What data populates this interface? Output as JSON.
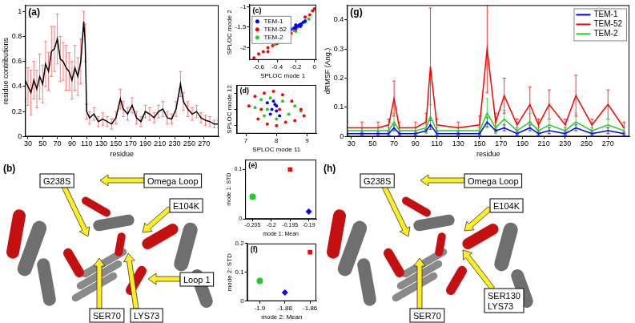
{
  "chart_data": [
    {
      "type": "line",
      "title": "(a)",
      "xlabel": "residue",
      "ylabel": "residue contributions",
      "xlim": [
        26,
        290
      ],
      "xticks": [
        30,
        50,
        70,
        90,
        110,
        130,
        150,
        170,
        190,
        210,
        230,
        250,
        270
      ],
      "ylim": [
        0,
        1.05
      ],
      "yticks": [
        0,
        0.2,
        0.4,
        0.6,
        0.8,
        1
      ],
      "grid": false,
      "x": [
        26,
        30,
        34,
        38,
        42,
        46,
        50,
        54,
        58,
        62,
        66,
        70,
        74,
        78,
        82,
        86,
        90,
        94,
        98,
        102,
        106,
        108,
        110,
        114,
        120,
        126,
        132,
        138,
        144,
        150,
        156,
        160,
        166,
        172,
        178,
        184,
        190,
        196,
        202,
        208,
        214,
        220,
        226,
        232,
        238,
        242,
        248,
        254,
        260,
        266,
        272,
        278,
        284,
        290
      ],
      "series": [
        {
          "color": "#000000",
          "values": [
            0.45,
            0.4,
            0.35,
            0.45,
            0.38,
            0.48,
            0.42,
            0.58,
            0.52,
            0.68,
            0.7,
            0.78,
            0.62,
            0.6,
            0.55,
            0.52,
            0.45,
            0.55,
            0.48,
            0.6,
            0.92,
            0.75,
            0.2,
            0.15,
            0.18,
            0.12,
            0.14,
            0.12,
            0.1,
            0.15,
            0.3,
            0.22,
            0.18,
            0.25,
            0.15,
            0.12,
            0.2,
            0.18,
            0.15,
            0.2,
            0.22,
            0.15,
            0.14,
            0.22,
            0.42,
            0.28,
            0.22,
            0.18,
            0.2,
            0.15,
            0.13,
            0.12,
            0.1,
            0.1
          ],
          "errors": [
            0.15,
            0.15,
            0.18,
            0.15,
            0.15,
            0.18,
            0.15,
            0.18,
            0.15,
            0.2,
            0.18,
            0.2,
            0.18,
            0.15,
            0.18,
            0.15,
            0.15,
            0.18,
            0.15,
            0.18,
            0.08,
            0.15,
            0.06,
            0.05,
            0.05,
            0.04,
            0.05,
            0.04,
            0.04,
            0.05,
            0.08,
            0.06,
            0.05,
            0.06,
            0.05,
            0.04,
            0.05,
            0.05,
            0.04,
            0.05,
            0.06,
            0.05,
            0.04,
            0.06,
            0.1,
            0.07,
            0.06,
            0.05,
            0.05,
            0.04,
            0.04,
            0.04,
            0.03,
            0.03
          ]
        }
      ]
    },
    {
      "type": "scatter",
      "title": "(c)",
      "xlabel": "SPLOC mode 1",
      "ylabel": "SPLOC mode 2",
      "xlim": [
        -0.7,
        0.02
      ],
      "xticks": [
        -0.6,
        -0.4,
        -0.2,
        0
      ],
      "ylim": [
        -2.3,
        -0.95
      ],
      "yticks": [
        -2,
        -1.5,
        -1
      ],
      "grid": false,
      "legend": "upper left",
      "series": [
        {
          "name": "TEM-1",
          "color": "#0000ff",
          "marker": "circle",
          "values": [
            [
              -0.3,
              -1.62
            ],
            [
              -0.27,
              -1.58
            ],
            [
              -0.25,
              -1.55
            ],
            [
              -0.22,
              -1.52
            ],
            [
              -0.2,
              -1.5
            ],
            [
              -0.18,
              -1.47
            ],
            [
              -0.16,
              -1.44
            ],
            [
              -0.14,
              -1.42
            ],
            [
              -0.12,
              -1.38
            ],
            [
              -0.1,
              -1.35
            ],
            [
              -0.2,
              -1.45
            ],
            [
              -0.15,
              -1.48
            ]
          ]
        },
        {
          "name": "TEM-52",
          "color": "#ff0000",
          "marker": "circle",
          "values": [
            [
              -0.65,
              -2.25
            ],
            [
              -0.6,
              -2.15
            ],
            [
              -0.55,
              -2.1
            ],
            [
              -0.5,
              -2.0
            ],
            [
              -0.45,
              -1.95
            ],
            [
              -0.4,
              -1.9
            ],
            [
              -0.35,
              -1.8
            ],
            [
              -0.3,
              -1.7
            ],
            [
              -0.25,
              -1.65
            ],
            [
              -0.2,
              -1.55
            ],
            [
              -0.15,
              -1.45
            ],
            [
              -0.1,
              -1.35
            ],
            [
              -0.05,
              -1.2
            ],
            [
              0,
              -1.05
            ],
            [
              -0.5,
              -2.1
            ],
            [
              -0.3,
              -1.8
            ],
            [
              -0.2,
              -1.45
            ],
            [
              -0.1,
              -1.25
            ],
            [
              -0.02,
              -1.1
            ]
          ]
        },
        {
          "name": "TEM-2",
          "color": "#22cc22",
          "marker": "circle",
          "values": [
            [
              -0.42,
              -1.92
            ],
            [
              -0.38,
              -1.85
            ],
            [
              -0.35,
              -1.78
            ],
            [
              -0.3,
              -1.72
            ],
            [
              -0.26,
              -1.65
            ],
            [
              -0.22,
              -1.58
            ],
            [
              -0.18,
              -1.5
            ],
            [
              -0.14,
              -1.45
            ],
            [
              -0.1,
              -1.38
            ],
            [
              -0.06,
              -1.3
            ],
            [
              -0.3,
              -1.65
            ],
            [
              -0.2,
              -1.6
            ]
          ]
        }
      ]
    },
    {
      "type": "scatter",
      "title": "(d)",
      "xlabel": "SPLOC mode 11",
      "ylabel": "SPLOC mode 12",
      "xlim": [
        6.7,
        9.3
      ],
      "xticks": [
        7,
        8,
        9
      ],
      "ylim": [
        -1.5,
        1.5
      ],
      "yticks": [
        -1,
        0,
        1
      ],
      "grid": false,
      "tick_labels": "x",
      "series": [
        {
          "name": "TEM-52",
          "color": "#ff0000",
          "marker": "circle",
          "values": [
            [
              7.1,
              0.2
            ],
            [
              7.3,
              0.8
            ],
            [
              7.4,
              -0.6
            ],
            [
              7.6,
              1.0
            ],
            [
              7.7,
              -0.9
            ],
            [
              7.9,
              1.1
            ],
            [
              8.0,
              -1.0
            ],
            [
              8.2,
              0.9
            ],
            [
              8.3,
              -0.8
            ],
            [
              8.5,
              0.5
            ],
            [
              8.6,
              -0.7
            ],
            [
              8.8,
              0.0
            ],
            [
              8.9,
              -0.4
            ],
            [
              7.5,
              0.0
            ],
            [
              8.1,
              0.0
            ]
          ]
        },
        {
          "name": "TEM-2",
          "color": "#22cc22",
          "marker": "circle",
          "values": [
            [
              7.3,
              0.1
            ],
            [
              7.5,
              0.6
            ],
            [
              7.6,
              -0.4
            ],
            [
              7.8,
              0.7
            ],
            [
              8.0,
              -0.6
            ],
            [
              8.2,
              0.5
            ],
            [
              8.4,
              -0.3
            ],
            [
              8.6,
              0.2
            ],
            [
              8.8,
              -0.1
            ],
            [
              7.7,
              0.0
            ]
          ]
        },
        {
          "name": "TEM-1",
          "color": "#0000ff",
          "marker": "circle",
          "values": [
            [
              7.7,
              0.4
            ],
            [
              7.8,
              -0.3
            ],
            [
              7.9,
              0.5
            ],
            [
              8.0,
              0.2
            ],
            [
              8.1,
              -0.4
            ],
            [
              7.85,
              0.0
            ],
            [
              8.0,
              -0.1
            ],
            [
              7.95,
              0.3
            ]
          ]
        }
      ]
    },
    {
      "type": "scatter",
      "title": "(e)",
      "xlabel": "mode 1: Mean",
      "ylabel": "mode 1: STD",
      "xlim": [
        -0.207,
        -0.188
      ],
      "xticks": [
        -0.205,
        -0.2,
        -0.195,
        -0.19
      ],
      "ylim": [
        0,
        0.12
      ],
      "yticks": [
        0,
        0.1
      ],
      "grid": false,
      "series": [
        {
          "name": "TEM-2",
          "color": "#22cc22",
          "marker": "circle",
          "values": [
            [
              -0.205,
              0.045
            ]
          ]
        },
        {
          "name": "TEM-52",
          "color": "#ff0000",
          "marker": "square",
          "values": [
            [
              -0.195,
              0.1
            ]
          ]
        },
        {
          "name": "TEM-1",
          "color": "#0000ff",
          "marker": "diamond",
          "values": [
            [
              -0.19,
              0.015
            ]
          ]
        }
      ]
    },
    {
      "type": "scatter",
      "title": "(f)",
      "xlabel": "mode 2: Mean",
      "ylabel": "mode 2: STD",
      "xlim": [
        -1.91,
        -1.855
      ],
      "xticks": [
        -1.9,
        -1.88,
        -1.86
      ],
      "ylim": [
        0,
        0.2
      ],
      "yticks": [
        0,
        0.1,
        0.2
      ],
      "grid": false,
      "series": [
        {
          "name": "TEM-2",
          "color": "#22cc22",
          "marker": "circle",
          "values": [
            [
              -1.9,
              0.07
            ]
          ]
        },
        {
          "name": "TEM-1",
          "color": "#0000ff",
          "marker": "diamond",
          "values": [
            [
              -1.88,
              0.03
            ]
          ]
        },
        {
          "name": "TEM-52",
          "color": "#ff0000",
          "marker": "square",
          "values": [
            [
              -1.86,
              0.17
            ]
          ]
        }
      ]
    },
    {
      "type": "line",
      "title": "(g)",
      "xlabel": "residue",
      "ylabel": "dRMSF (Ang.)",
      "xlim": [
        26,
        290
      ],
      "xticks": [
        30,
        50,
        70,
        90,
        110,
        130,
        150,
        170,
        190,
        210,
        230,
        250,
        270
      ],
      "ylim": [
        0,
        0.45
      ],
      "yticks": [
        0,
        0.1,
        0.2,
        0.3,
        0.4
      ],
      "grid": false,
      "legend": "upper right",
      "x": [
        26,
        40,
        55,
        65,
        70,
        75,
        90,
        100,
        104,
        110,
        130,
        150,
        157,
        165,
        173,
        185,
        197,
        205,
        215,
        230,
        240,
        255,
        270,
        285
      ],
      "series": [
        {
          "name": "TEM-1",
          "color": "#0000ff",
          "values": [
            0.01,
            0.01,
            0.01,
            0.01,
            0.03,
            0.01,
            0.01,
            0.02,
            0.04,
            0.01,
            0.01,
            0.01,
            0.05,
            0.02,
            0.03,
            0.01,
            0.03,
            0.01,
            0.02,
            0.01,
            0.03,
            0.01,
            0.02,
            0.01
          ],
          "errors": [
            0.005,
            0.005,
            0.005,
            0.005,
            0.01,
            0.005,
            0.005,
            0.005,
            0.015,
            0.005,
            0.005,
            0.005,
            0.015,
            0.005,
            0.01,
            0.005,
            0.01,
            0.005,
            0.01,
            0.005,
            0.01,
            0.005,
            0.01,
            0.005
          ]
        },
        {
          "name": "TEM-52",
          "color": "#ff0000",
          "values": [
            0.03,
            0.03,
            0.03,
            0.04,
            0.13,
            0.03,
            0.03,
            0.05,
            0.24,
            0.04,
            0.03,
            0.04,
            0.3,
            0.05,
            0.14,
            0.04,
            0.11,
            0.04,
            0.11,
            0.04,
            0.14,
            0.04,
            0.11,
            0.03
          ],
          "errors": [
            0.02,
            0.02,
            0.02,
            0.02,
            0.06,
            0.02,
            0.02,
            0.03,
            0.2,
            0.02,
            0.02,
            0.03,
            0.15,
            0.03,
            0.06,
            0.02,
            0.06,
            0.02,
            0.05,
            0.02,
            0.07,
            0.02,
            0.05,
            0.02
          ]
        },
        {
          "name": "TEM-2",
          "color": "#22cc22",
          "values": [
            0.02,
            0.02,
            0.02,
            0.02,
            0.05,
            0.02,
            0.02,
            0.03,
            0.07,
            0.02,
            0.02,
            0.02,
            0.08,
            0.03,
            0.06,
            0.02,
            0.05,
            0.02,
            0.04,
            0.02,
            0.05,
            0.02,
            0.04,
            0.02
          ],
          "errors": [
            0.01,
            0.01,
            0.01,
            0.01,
            0.03,
            0.01,
            0.01,
            0.02,
            0.04,
            0.01,
            0.01,
            0.01,
            0.05,
            0.02,
            0.03,
            0.01,
            0.03,
            0.01,
            0.02,
            0.01,
            0.03,
            0.01,
            0.02,
            0.01
          ]
        }
      ]
    }
  ],
  "diagrams": [
    {
      "title": "(b)",
      "labels": [
        [
          "G238S"
        ],
        [
          "Omega Loop"
        ],
        [
          "E104K"
        ],
        [
          "SER70"
        ],
        [
          "LYS73"
        ],
        [
          "Loop 1"
        ]
      ]
    },
    {
      "title": "(h)",
      "labels": [
        [
          "G238S"
        ],
        [
          "Omega Loop"
        ],
        [
          "E104K"
        ],
        [
          "SER70"
        ],
        [
          "SER130",
          "LYS73"
        ]
      ]
    }
  ]
}
